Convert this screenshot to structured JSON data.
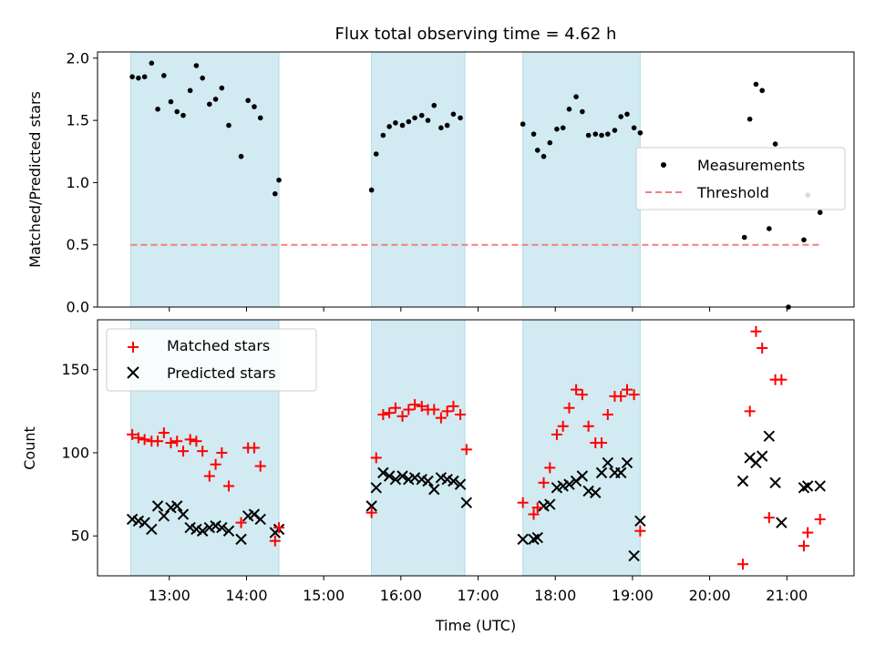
{
  "colors": {
    "shade": "#add8e6",
    "threshold": "#f08080",
    "matched": "#ff0000",
    "predicted": "#000000",
    "measurement": "#000000"
  },
  "chart_data": [
    {
      "type": "scatter",
      "title": "Flux total observing time = 4.62 h",
      "xlabel": "",
      "ylabel": "Matched/Predicted stars",
      "ylim": [
        0,
        2.05
      ],
      "yticks": [
        0.0,
        0.5,
        1.0,
        1.5,
        2.0
      ],
      "ytick_labels": [
        "0.0",
        "0.5",
        "1.0",
        "1.5",
        "2.0"
      ],
      "xlim": [
        12.07,
        21.87
      ],
      "shaded_intervals": [
        [
          12.5,
          14.42
        ],
        [
          15.62,
          16.83
        ],
        [
          17.58,
          19.1
        ]
      ],
      "legend": {
        "position": "center-right",
        "entries": [
          "Measurements",
          "Threshold"
        ]
      },
      "series": [
        {
          "name": "Measurements",
          "marker": "dot",
          "x": [
            12.52,
            12.6,
            12.68,
            12.77,
            12.85,
            12.93,
            13.02,
            13.1,
            13.18,
            13.27,
            13.35,
            13.43,
            13.52,
            13.6,
            13.68,
            13.77,
            13.93,
            14.02,
            14.1,
            14.18,
            14.37,
            14.42,
            15.62,
            15.68,
            15.77,
            15.85,
            15.93,
            16.02,
            16.1,
            16.18,
            16.27,
            16.35,
            16.43,
            16.52,
            16.6,
            16.68,
            16.77,
            17.58,
            17.72,
            17.77,
            17.85,
            17.93,
            18.02,
            18.1,
            18.18,
            18.27,
            18.35,
            18.43,
            18.52,
            18.6,
            18.68,
            18.77,
            18.85,
            18.93,
            19.02,
            19.1,
            20.45,
            20.52,
            20.6,
            20.68,
            20.77,
            20.85,
            21.02,
            21.22,
            21.27,
            21.43
          ],
          "y": [
            1.85,
            1.84,
            1.85,
            1.96,
            1.59,
            1.86,
            1.65,
            1.57,
            1.54,
            1.74,
            1.94,
            1.84,
            1.63,
            1.67,
            1.76,
            1.46,
            1.21,
            1.66,
            1.61,
            1.52,
            0.91,
            1.02,
            0.94,
            1.23,
            1.38,
            1.45,
            1.48,
            1.46,
            1.49,
            1.52,
            1.54,
            1.5,
            1.62,
            1.44,
            1.46,
            1.55,
            1.52,
            1.47,
            1.39,
            1.26,
            1.21,
            1.32,
            1.43,
            1.44,
            1.59,
            1.69,
            1.57,
            1.38,
            1.39,
            1.38,
            1.39,
            1.42,
            1.53,
            1.55,
            1.44,
            1.4,
            0.56,
            1.51,
            1.79,
            1.74,
            0.63,
            1.31,
            0.0,
            0.54,
            0.9,
            0.76
          ]
        },
        {
          "name": "Threshold",
          "marker": "dashed-line",
          "x": [
            12.5,
            21.43
          ],
          "y": [
            0.5,
            0.5
          ]
        }
      ]
    },
    {
      "type": "scatter",
      "title": "",
      "xlabel": "Time (UTC)",
      "ylabel": "Count",
      "ylim": [
        26,
        180
      ],
      "yticks": [
        50,
        100,
        150
      ],
      "ytick_labels": [
        "50",
        "100",
        "150"
      ],
      "xlim": [
        12.07,
        21.87
      ],
      "xticks": [
        13,
        14,
        15,
        16,
        17,
        18,
        19,
        20,
        21
      ],
      "xtick_labels": [
        "13:00",
        "14:00",
        "15:00",
        "16:00",
        "17:00",
        "18:00",
        "19:00",
        "20:00",
        "21:00"
      ],
      "shaded_intervals": [
        [
          12.5,
          14.42
        ],
        [
          15.62,
          16.83
        ],
        [
          17.58,
          19.1
        ]
      ],
      "legend": {
        "position": "top-left",
        "entries": [
          "Matched stars",
          "Predicted stars"
        ]
      },
      "series": [
        {
          "name": "Matched stars",
          "marker": "plus",
          "x": [
            12.52,
            12.6,
            12.68,
            12.77,
            12.85,
            12.93,
            13.02,
            13.1,
            13.18,
            13.27,
            13.35,
            13.43,
            13.52,
            13.6,
            13.68,
            13.77,
            13.93,
            14.02,
            14.1,
            14.18,
            14.37,
            14.42,
            15.62,
            15.68,
            15.77,
            15.85,
            15.93,
            16.02,
            16.1,
            16.18,
            16.27,
            16.35,
            16.43,
            16.52,
            16.6,
            16.68,
            16.77,
            16.85,
            17.58,
            17.72,
            17.77,
            17.85,
            17.93,
            18.02,
            18.1,
            18.18,
            18.27,
            18.35,
            18.43,
            18.52,
            18.6,
            18.68,
            18.77,
            18.85,
            18.93,
            19.02,
            19.1,
            20.43,
            20.52,
            20.6,
            20.68,
            20.77,
            20.85,
            20.93,
            21.22,
            21.27,
            21.43
          ],
          "y": [
            111,
            109,
            108,
            107,
            107,
            112,
            106,
            107,
            101,
            108,
            107,
            101,
            86,
            93,
            100,
            80,
            58,
            103,
            103,
            92,
            47,
            55,
            64,
            97,
            123,
            124,
            127,
            122,
            126,
            129,
            128,
            126,
            126,
            121,
            125,
            128,
            123,
            102,
            70,
            63,
            67,
            82,
            91,
            111,
            116,
            127,
            138,
            135,
            116,
            106,
            106,
            123,
            134,
            134,
            138,
            135,
            53,
            33,
            125,
            173,
            163,
            61,
            144,
            144,
            44,
            52,
            60
          ]
        },
        {
          "name": "Predicted stars",
          "marker": "x",
          "x": [
            12.52,
            12.6,
            12.68,
            12.77,
            12.85,
            12.93,
            13.02,
            13.1,
            13.18,
            13.27,
            13.35,
            13.43,
            13.52,
            13.6,
            13.68,
            13.77,
            13.93,
            14.02,
            14.1,
            14.18,
            14.37,
            14.42,
            15.62,
            15.68,
            15.77,
            15.85,
            15.93,
            16.02,
            16.1,
            16.18,
            16.27,
            16.35,
            16.43,
            16.52,
            16.6,
            16.68,
            16.77,
            16.85,
            17.58,
            17.72,
            17.77,
            17.85,
            17.93,
            18.02,
            18.1,
            18.18,
            18.27,
            18.35,
            18.43,
            18.52,
            18.6,
            18.68,
            18.77,
            18.85,
            18.93,
            19.02,
            19.1,
            20.43,
            20.52,
            20.6,
            20.68,
            20.77,
            20.85,
            20.93,
            21.22,
            21.27,
            21.43
          ],
          "y": [
            60,
            59,
            58,
            54,
            68,
            62,
            67,
            68,
            63,
            55,
            54,
            53,
            55,
            56,
            55,
            53,
            48,
            62,
            63,
            60,
            52,
            54,
            68,
            79,
            88,
            86,
            84,
            86,
            84,
            85,
            84,
            83,
            78,
            85,
            84,
            83,
            81,
            70,
            48,
            48,
            49,
            68,
            69,
            79,
            80,
            81,
            83,
            86,
            77,
            76,
            88,
            94,
            88,
            88,
            94,
            38,
            59,
            83,
            97,
            94,
            98,
            110,
            82,
            58,
            79,
            80,
            80
          ]
        }
      ]
    }
  ]
}
